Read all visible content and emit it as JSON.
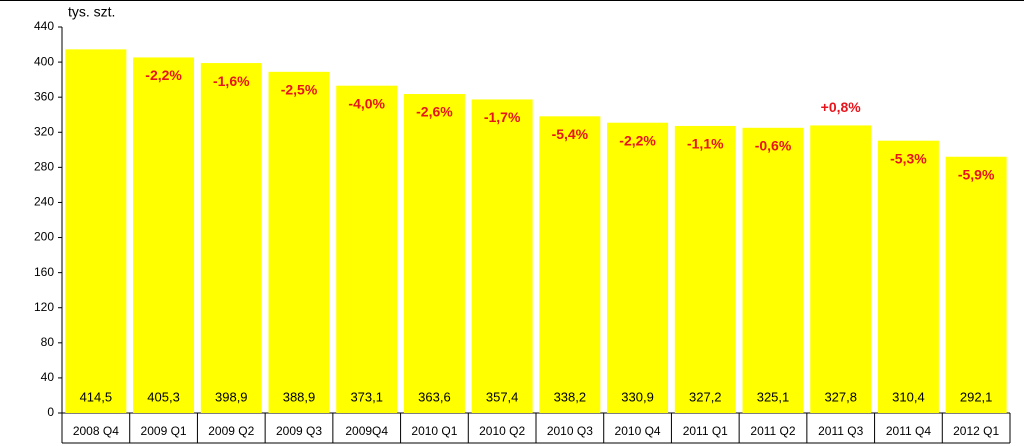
{
  "chart_data": {
    "type": "bar",
    "unit_label": "tys. szt.",
    "categories": [
      "2008 Q4",
      "2009 Q1",
      "2009 Q2",
      "2009 Q3",
      "2009Q4",
      "2010 Q1",
      "2010 Q2",
      "2010 Q3",
      "2010 Q4",
      "2011 Q1",
      "2011 Q2",
      "2011 Q3",
      "2011 Q4",
      "2012 Q1"
    ],
    "values": [
      414.5,
      405.3,
      398.9,
      388.9,
      373.1,
      363.6,
      357.4,
      338.2,
      330.9,
      327.2,
      325.1,
      327.8,
      310.4,
      292.1
    ],
    "value_labels": [
      "414,5",
      "405,3",
      "398,9",
      "388,9",
      "373,1",
      "363,6",
      "357,4",
      "338,2",
      "330,9",
      "327,2",
      "325,1",
      "327,8",
      "310,4",
      "292,1"
    ],
    "change_labels": [
      null,
      "-2,2%",
      "-1,6%",
      "-2,5%",
      "-4,0%",
      "-2,6%",
      "-1,7%",
      "-5,4%",
      "-2,2%",
      "-1,1%",
      "-0,6%",
      "+0,8%",
      "-5,3%",
      "-5,9%"
    ],
    "color": "#ffff00",
    "change_color": "#e8141c",
    "ylim": [
      0,
      440
    ],
    "yticks": [
      0,
      40,
      80,
      120,
      160,
      200,
      240,
      280,
      320,
      360,
      400,
      440
    ]
  }
}
